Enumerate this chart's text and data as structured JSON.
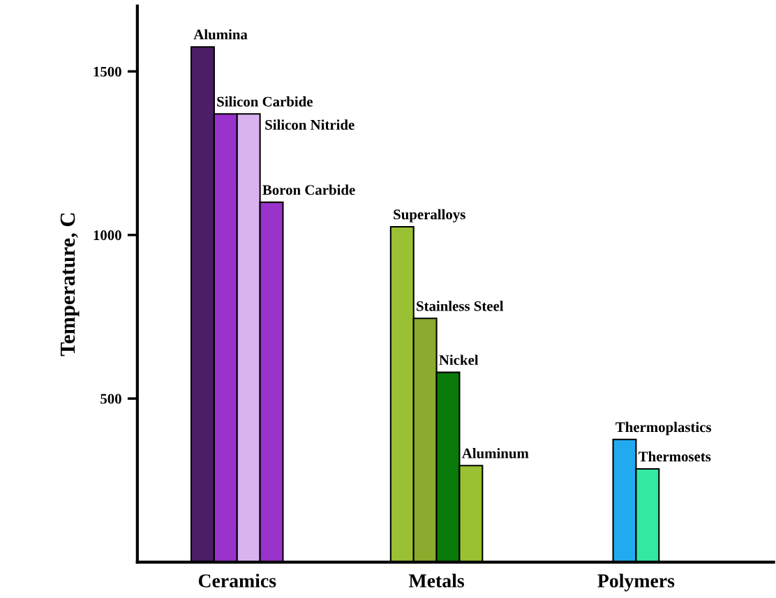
{
  "chart_data": {
    "type": "bar",
    "ylabel": "Temperature, C",
    "categories": [
      "Ceramics",
      "Metals",
      "Polymers"
    ],
    "series": [
      {
        "name": "Alumina",
        "color": "#4b1e66",
        "values": [
          1575,
          null,
          null
        ]
      },
      {
        "name": "Silicon Carbide",
        "color": "#9933cc",
        "values": [
          1370,
          null,
          null
        ]
      },
      {
        "name": "Silicon Nitride",
        "color": "#d9b3f0",
        "values": [
          1370,
          null,
          null
        ]
      },
      {
        "name": "Boron Carbide",
        "color": "#9933cc",
        "values": [
          1100,
          null,
          null
        ]
      },
      {
        "name": "Superalloys",
        "color": "#99c133",
        "values": [
          null,
          1025,
          null
        ]
      },
      {
        "name": "Stainless Steel",
        "color": "#8aab2e",
        "values": [
          null,
          745,
          null
        ]
      },
      {
        "name": "Nickel",
        "color": "#0a7a0a",
        "values": [
          null,
          580,
          null
        ]
      },
      {
        "name": "Aluminum",
        "color": "#99c133",
        "values": [
          null,
          295,
          null
        ]
      },
      {
        "name": "Thermoplastics",
        "color": "#22aaf0",
        "values": [
          null,
          null,
          375
        ]
      },
      {
        "name": "Thermosets",
        "color": "#33e8a0",
        "values": [
          null,
          null,
          285
        ]
      }
    ],
    "ylim": [
      0,
      1700
    ],
    "yticks": [
      500,
      1000,
      1500
    ],
    "grid": false,
    "legend": false
  }
}
